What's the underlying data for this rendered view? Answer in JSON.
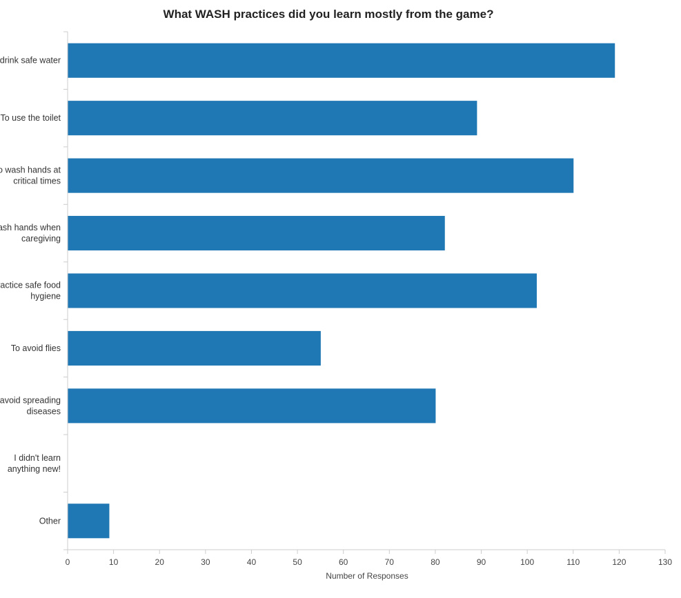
{
  "chart_data": {
    "type": "bar",
    "orientation": "horizontal",
    "title": "What WASH practices did you learn mostly from the game?",
    "xlabel": "Number of Responses",
    "ylabel": "",
    "categories": [
      [
        "To drink safe water"
      ],
      [
        "To use the toilet"
      ],
      [
        "To wash hands at",
        "critical times"
      ],
      [
        "To wash hands when",
        "caregiving"
      ],
      [
        "To practice safe food",
        "hygiene"
      ],
      [
        "To avoid flies"
      ],
      [
        "To avoid spreading",
        "diseases"
      ],
      [
        "I didn't learn",
        "anything new!"
      ],
      [
        "Other"
      ]
    ],
    "values": [
      119,
      89,
      110,
      82,
      102,
      55,
      80,
      0,
      9
    ],
    "xlim": [
      0,
      130
    ],
    "xticks": [
      0,
      10,
      20,
      30,
      40,
      50,
      60,
      70,
      80,
      90,
      100,
      110,
      120,
      130
    ],
    "bar_color": "#1f77b4",
    "grid": false,
    "legend": "none"
  }
}
